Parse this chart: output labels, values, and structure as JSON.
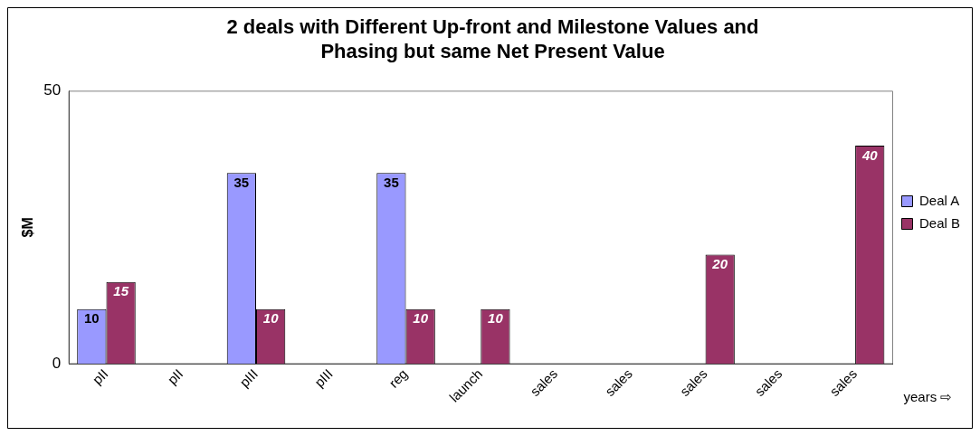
{
  "chart_data": {
    "type": "bar",
    "title": "2 deals with Different Up-front and Milestone Values and Phasing but same Net Present Value",
    "xlabel": "years ⇨",
    "ylabel": "$M",
    "categories": [
      "pII",
      "pII",
      "pIII",
      "pIII",
      "reg",
      "launch",
      "sales",
      "sales",
      "sales",
      "sales",
      "sales"
    ],
    "series": [
      {
        "name": "Deal A",
        "color": "#9999ff",
        "values": [
          10,
          null,
          35,
          null,
          35,
          null,
          null,
          null,
          null,
          null,
          null
        ]
      },
      {
        "name": "Deal B",
        "color": "#993366",
        "values": [
          15,
          null,
          10,
          null,
          10,
          10,
          null,
          null,
          20,
          null,
          40
        ]
      }
    ],
    "ylim": [
      0,
      50
    ],
    "yticks": [
      0,
      50
    ],
    "grid": false,
    "legend": "right",
    "data_labels": true
  }
}
